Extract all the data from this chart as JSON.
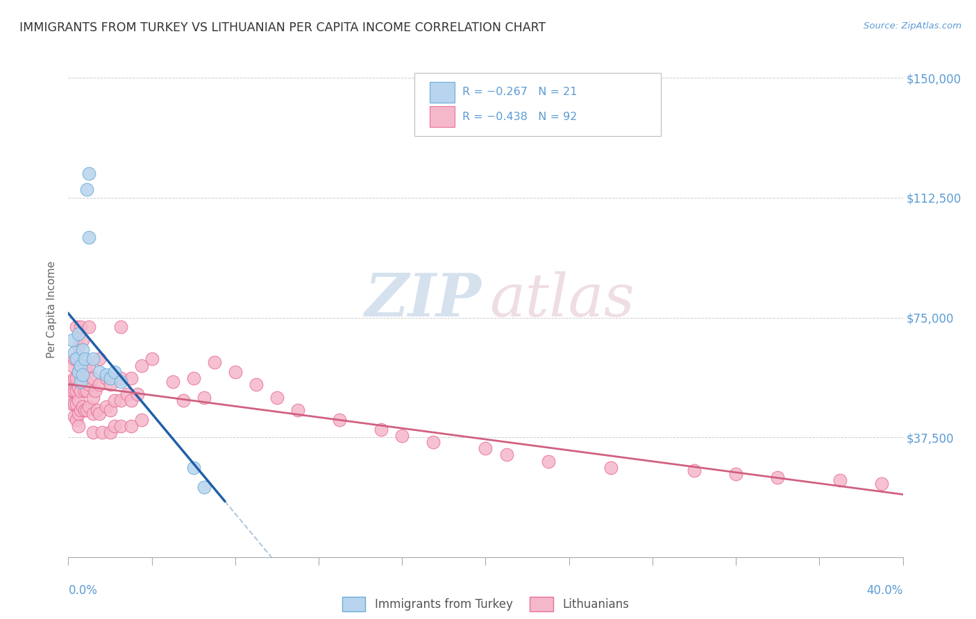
{
  "title": "IMMIGRANTS FROM TURKEY VS LITHUANIAN PER CAPITA INCOME CORRELATION CHART",
  "source": "Source: ZipAtlas.com",
  "ylabel": "Per Capita Income",
  "yticks": [
    0,
    37500,
    75000,
    112500,
    150000
  ],
  "ytick_labels": [
    "",
    "$37,500",
    "$75,000",
    "$112,500",
    "$150,000"
  ],
  "xlim": [
    0.0,
    0.4
  ],
  "ylim": [
    0,
    155000
  ],
  "watermark_zip": "ZIP",
  "watermark_atlas": "atlas",
  "turkey_color": "#b8d4ee",
  "turkey_edge": "#6aaed6",
  "lithuanian_color": "#f5b8cb",
  "lithuanian_edge": "#e87098",
  "trendline_turkey_color": "#2060a8",
  "trendline_lithuanian_color": "#d06080",
  "turkey_scatter_x": [
    0.002,
    0.003,
    0.004,
    0.005,
    0.005,
    0.006,
    0.006,
    0.007,
    0.007,
    0.008,
    0.009,
    0.01,
    0.01,
    0.012,
    0.015,
    0.018,
    0.02,
    0.022,
    0.025,
    0.06,
    0.065
  ],
  "turkey_scatter_y": [
    68000,
    64000,
    62000,
    70000,
    58000,
    60000,
    55000,
    65000,
    57000,
    62000,
    115000,
    120000,
    100000,
    62000,
    58000,
    57000,
    56000,
    58000,
    55000,
    28000,
    22000
  ],
  "lithuanian_scatter_x": [
    0.001,
    0.001,
    0.002,
    0.002,
    0.002,
    0.003,
    0.003,
    0.003,
    0.003,
    0.003,
    0.004,
    0.004,
    0.004,
    0.004,
    0.004,
    0.004,
    0.005,
    0.005,
    0.005,
    0.005,
    0.005,
    0.005,
    0.006,
    0.006,
    0.006,
    0.006,
    0.007,
    0.007,
    0.007,
    0.007,
    0.008,
    0.008,
    0.008,
    0.009,
    0.009,
    0.009,
    0.01,
    0.01,
    0.01,
    0.01,
    0.012,
    0.012,
    0.012,
    0.012,
    0.013,
    0.014,
    0.015,
    0.015,
    0.015,
    0.016,
    0.018,
    0.018,
    0.02,
    0.02,
    0.02,
    0.022,
    0.022,
    0.025,
    0.025,
    0.025,
    0.025,
    0.028,
    0.03,
    0.03,
    0.03,
    0.033,
    0.035,
    0.035,
    0.04,
    0.05,
    0.055,
    0.06,
    0.065,
    0.07,
    0.08,
    0.09,
    0.1,
    0.11,
    0.13,
    0.15,
    0.16,
    0.175,
    0.2,
    0.21,
    0.23,
    0.26,
    0.3,
    0.32,
    0.34,
    0.37,
    0.39
  ],
  "lithuanian_scatter_y": [
    55000,
    52000,
    60000,
    52000,
    48000,
    62000,
    56000,
    52000,
    48000,
    44000,
    72000,
    62000,
    56000,
    52000,
    48000,
    43000,
    66000,
    58000,
    53000,
    49000,
    45000,
    41000,
    72000,
    60000,
    52000,
    46000,
    68000,
    60000,
    55000,
    47000,
    57000,
    52000,
    46000,
    58000,
    52000,
    46000,
    72000,
    60000,
    54000,
    47000,
    56000,
    50000,
    45000,
    39000,
    52000,
    46000,
    62000,
    54000,
    45000,
    39000,
    56000,
    47000,
    54000,
    46000,
    39000,
    49000,
    41000,
    72000,
    56000,
    49000,
    41000,
    51000,
    56000,
    49000,
    41000,
    51000,
    60000,
    43000,
    62000,
    55000,
    49000,
    56000,
    50000,
    61000,
    58000,
    54000,
    50000,
    46000,
    43000,
    40000,
    38000,
    36000,
    34000,
    32000,
    30000,
    28000,
    27000,
    26000,
    25000,
    24000,
    23000
  ]
}
